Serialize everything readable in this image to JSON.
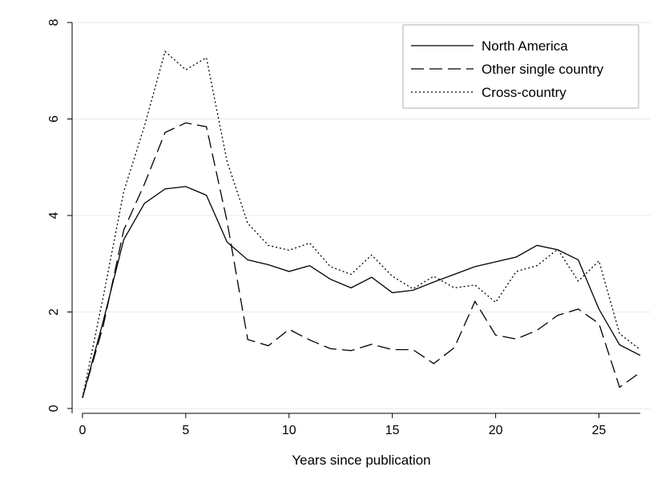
{
  "chart_data": {
    "type": "line",
    "title": "",
    "xlabel": "Years since publication",
    "ylabel": "",
    "xlim": [
      -0.5,
      27.5
    ],
    "ylim": [
      -0.1,
      8.3
    ],
    "x_ticks": [
      0,
      5,
      10,
      15,
      20,
      25
    ],
    "y_ticks": [
      0,
      2,
      4,
      6,
      8
    ],
    "grid": "horizontal",
    "legend_position": "top-right",
    "x": [
      0,
      1,
      2,
      3,
      4,
      5,
      6,
      7,
      8,
      9,
      10,
      11,
      12,
      13,
      14,
      15,
      16,
      17,
      18,
      19,
      20,
      21,
      22,
      23,
      24,
      25,
      26,
      27
    ],
    "series": [
      {
        "name": "North America",
        "style": "solid",
        "values": [
          0.22,
          1.8,
          3.5,
          4.25,
          4.55,
          4.6,
          4.42,
          3.45,
          3.08,
          2.98,
          2.84,
          2.96,
          2.68,
          2.5,
          2.72,
          2.4,
          2.45,
          2.62,
          2.78,
          2.94,
          3.04,
          3.14,
          3.38,
          3.29,
          3.08,
          2.06,
          1.32,
          1.1
        ]
      },
      {
        "name": "Other single country",
        "style": "dashed",
        "values": [
          0.22,
          1.7,
          3.7,
          4.65,
          5.72,
          5.92,
          5.84,
          3.88,
          1.43,
          1.3,
          1.64,
          1.42,
          1.24,
          1.2,
          1.33,
          1.22,
          1.22,
          0.93,
          1.26,
          2.22,
          1.52,
          1.44,
          1.62,
          1.93,
          2.06,
          1.76,
          0.44,
          0.75
        ]
      },
      {
        "name": "Cross-country",
        "style": "dotted",
        "values": [
          0.22,
          2.3,
          4.5,
          5.85,
          7.4,
          7.02,
          7.27,
          5.12,
          3.84,
          3.38,
          3.28,
          3.43,
          2.94,
          2.78,
          3.18,
          2.74,
          2.48,
          2.74,
          2.5,
          2.56,
          2.2,
          2.84,
          2.96,
          3.3,
          2.64,
          3.06,
          1.55,
          1.22
        ]
      }
    ]
  }
}
